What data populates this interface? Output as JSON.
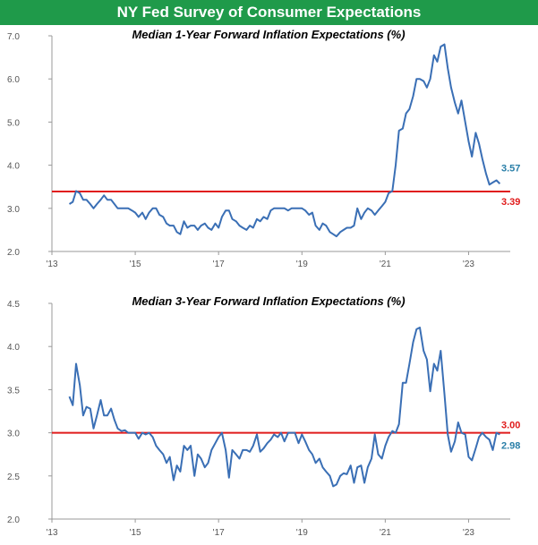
{
  "banner": {
    "title": "NY Fed Survey of Consumer Expectations"
  },
  "colors": {
    "banner": "#1f9a4a",
    "series": "#3a6fb5",
    "reference": "#e01b1b",
    "axis": "#999999"
  },
  "chart_data": [
    {
      "type": "line",
      "title": "Median 1-Year Forward Inflation Expectations (%)",
      "xlabel": "",
      "ylabel": "",
      "xlim": [
        2013.0,
        2024.0
      ],
      "ylim": [
        2.0,
        7.0
      ],
      "yticks": [
        "2.0",
        "3.0",
        "4.0",
        "5.0",
        "6.0",
        "7.0"
      ],
      "xticks": [
        {
          "x": 2013,
          "label": "'13"
        },
        {
          "x": 2015,
          "label": "'15"
        },
        {
          "x": 2017,
          "label": "'17"
        },
        {
          "x": 2019,
          "label": "'19"
        },
        {
          "x": 2021,
          "label": "'21"
        },
        {
          "x": 2023,
          "label": "'23"
        }
      ],
      "reference_line": {
        "y": 3.39,
        "label": "3.39"
      },
      "last_value_label": "3.57",
      "grid": false,
      "series": [
        {
          "x": [
            2013.42,
            2013.5,
            2013.58,
            2013.67,
            2013.75,
            2013.83,
            2013.92,
            2014.0,
            2014.08,
            2014.17,
            2014.25,
            2014.33,
            2014.42,
            2014.5,
            2014.58,
            2014.67,
            2014.75,
            2014.83,
            2014.92,
            2015.0,
            2015.08,
            2015.17,
            2015.25,
            2015.33,
            2015.42,
            2015.5,
            2015.58,
            2015.67,
            2015.75,
            2015.83,
            2015.92,
            2016.0,
            2016.08,
            2016.17,
            2016.25,
            2016.33,
            2016.42,
            2016.5,
            2016.58,
            2016.67,
            2016.75,
            2016.83,
            2016.92,
            2017.0,
            2017.08,
            2017.17,
            2017.25,
            2017.33,
            2017.42,
            2017.5,
            2017.58,
            2017.67,
            2017.75,
            2017.83,
            2017.92,
            2018.0,
            2018.08,
            2018.17,
            2018.25,
            2018.33,
            2018.42,
            2018.5,
            2018.58,
            2018.67,
            2018.75,
            2018.83,
            2018.92,
            2019.0,
            2019.08,
            2019.17,
            2019.25,
            2019.33,
            2019.42,
            2019.5,
            2019.58,
            2019.67,
            2019.75,
            2019.83,
            2019.92,
            2020.0,
            2020.08,
            2020.17,
            2020.25,
            2020.33,
            2020.42,
            2020.5,
            2020.58,
            2020.67,
            2020.75,
            2020.83,
            2020.92,
            2021.0,
            2021.08,
            2021.17,
            2021.25,
            2021.33,
            2021.42,
            2021.5,
            2021.58,
            2021.67,
            2021.75,
            2021.83,
            2021.92,
            2022.0,
            2022.08,
            2022.17,
            2022.25,
            2022.33,
            2022.42,
            2022.5,
            2022.58,
            2022.67,
            2022.75,
            2022.83,
            2022.92,
            2023.0,
            2023.08,
            2023.17,
            2023.25,
            2023.33,
            2023.42,
            2023.5,
            2023.58,
            2023.67,
            2023.75
          ],
          "values": [
            3.1,
            3.15,
            3.4,
            3.35,
            3.2,
            3.2,
            3.1,
            3.0,
            3.1,
            3.2,
            3.3,
            3.2,
            3.2,
            3.1,
            3.0,
            3.0,
            3.0,
            3.0,
            2.95,
            2.9,
            2.8,
            2.9,
            2.75,
            2.9,
            3.0,
            3.0,
            2.85,
            2.8,
            2.65,
            2.6,
            2.6,
            2.45,
            2.4,
            2.7,
            2.55,
            2.6,
            2.6,
            2.5,
            2.6,
            2.65,
            2.55,
            2.5,
            2.65,
            2.55,
            2.8,
            2.95,
            2.95,
            2.75,
            2.7,
            2.6,
            2.55,
            2.5,
            2.6,
            2.55,
            2.75,
            2.7,
            2.8,
            2.75,
            2.95,
            3.0,
            3.0,
            3.0,
            3.0,
            2.95,
            3.0,
            3.0,
            3.0,
            3.0,
            2.95,
            2.85,
            2.9,
            2.6,
            2.5,
            2.65,
            2.6,
            2.45,
            2.4,
            2.35,
            2.45,
            2.5,
            2.55,
            2.55,
            2.6,
            3.0,
            2.75,
            2.9,
            3.0,
            2.95,
            2.85,
            2.95,
            3.05,
            3.15,
            3.35,
            3.4,
            4.0,
            4.8,
            4.85,
            5.2,
            5.3,
            5.6,
            6.0,
            6.0,
            5.95,
            5.8,
            6.0,
            6.55,
            6.4,
            6.75,
            6.8,
            6.25,
            5.8,
            5.45,
            5.2,
            5.5,
            5.0,
            4.55,
            4.2,
            4.75,
            4.5,
            4.15,
            3.8,
            3.55,
            3.6,
            3.65,
            3.57
          ]
        }
      ]
    },
    {
      "type": "line",
      "title": "Median 3-Year Forward Inflation Expectations (%)",
      "xlabel": "",
      "ylabel": "",
      "xlim": [
        2013.0,
        2024.0
      ],
      "ylim": [
        2.0,
        4.5
      ],
      "yticks": [
        "2.0",
        "2.5",
        "3.0",
        "3.5",
        "4.0",
        "4.5"
      ],
      "xticks": [
        {
          "x": 2013,
          "label": "'13"
        },
        {
          "x": 2015,
          "label": "'15"
        },
        {
          "x": 2017,
          "label": "'17"
        },
        {
          "x": 2019,
          "label": "'19"
        },
        {
          "x": 2021,
          "label": "'21"
        },
        {
          "x": 2023,
          "label": "'23"
        }
      ],
      "reference_line": {
        "y": 3.0,
        "label": "3.00"
      },
      "last_value_label": "2.98",
      "grid": false,
      "series": [
        {
          "x": [
            2013.42,
            2013.5,
            2013.58,
            2013.67,
            2013.75,
            2013.83,
            2013.92,
            2014.0,
            2014.08,
            2014.17,
            2014.25,
            2014.33,
            2014.42,
            2014.5,
            2014.58,
            2014.67,
            2014.75,
            2014.83,
            2014.92,
            2015.0,
            2015.08,
            2015.17,
            2015.25,
            2015.33,
            2015.42,
            2015.5,
            2015.58,
            2015.67,
            2015.75,
            2015.83,
            2015.92,
            2016.0,
            2016.08,
            2016.17,
            2016.25,
            2016.33,
            2016.42,
            2016.5,
            2016.58,
            2016.67,
            2016.75,
            2016.83,
            2016.92,
            2017.0,
            2017.08,
            2017.17,
            2017.25,
            2017.33,
            2017.42,
            2017.5,
            2017.58,
            2017.67,
            2017.75,
            2017.83,
            2017.92,
            2018.0,
            2018.08,
            2018.17,
            2018.25,
            2018.33,
            2018.42,
            2018.5,
            2018.58,
            2018.67,
            2018.75,
            2018.83,
            2018.92,
            2019.0,
            2019.08,
            2019.17,
            2019.25,
            2019.33,
            2019.42,
            2019.5,
            2019.58,
            2019.67,
            2019.75,
            2019.83,
            2019.92,
            2020.0,
            2020.08,
            2020.17,
            2020.25,
            2020.33,
            2020.42,
            2020.5,
            2020.58,
            2020.67,
            2020.75,
            2020.83,
            2020.92,
            2021.0,
            2021.08,
            2021.17,
            2021.25,
            2021.33,
            2021.42,
            2021.5,
            2021.58,
            2021.67,
            2021.75,
            2021.83,
            2021.92,
            2022.0,
            2022.08,
            2022.17,
            2022.25,
            2022.33,
            2022.42,
            2022.5,
            2022.58,
            2022.67,
            2022.75,
            2022.83,
            2022.92,
            2023.0,
            2023.08,
            2023.17,
            2023.25,
            2023.33,
            2023.42,
            2023.5,
            2023.58,
            2023.67,
            2023.75
          ],
          "values": [
            3.42,
            3.32,
            3.8,
            3.55,
            3.2,
            3.3,
            3.28,
            3.05,
            3.2,
            3.38,
            3.2,
            3.2,
            3.28,
            3.15,
            3.05,
            3.02,
            3.03,
            3.0,
            3.0,
            3.0,
            2.93,
            3.0,
            2.98,
            3.0,
            2.95,
            2.85,
            2.8,
            2.75,
            2.65,
            2.72,
            2.45,
            2.62,
            2.55,
            2.85,
            2.8,
            2.85,
            2.5,
            2.75,
            2.7,
            2.6,
            2.65,
            2.8,
            2.88,
            2.95,
            3.0,
            2.8,
            2.48,
            2.8,
            2.75,
            2.7,
            2.8,
            2.8,
            2.78,
            2.85,
            2.98,
            2.78,
            2.82,
            2.88,
            2.92,
            2.98,
            2.95,
            3.0,
            2.9,
            3.0,
            3.0,
            3.0,
            2.88,
            2.98,
            2.9,
            2.8,
            2.75,
            2.65,
            2.7,
            2.6,
            2.55,
            2.5,
            2.38,
            2.4,
            2.5,
            2.53,
            2.52,
            2.62,
            2.42,
            2.6,
            2.62,
            2.42,
            2.6,
            2.7,
            2.98,
            2.75,
            2.7,
            2.85,
            2.95,
            3.02,
            3.0,
            3.1,
            3.58,
            3.58,
            3.8,
            4.05,
            4.2,
            4.22,
            3.95,
            3.85,
            3.48,
            3.8,
            3.72,
            3.95,
            3.45,
            2.98,
            2.78,
            2.9,
            3.12,
            3.0,
            2.98,
            2.72,
            2.68,
            2.82,
            2.95,
            3.0,
            2.95,
            2.92,
            2.8,
            3.0,
            2.98
          ]
        }
      ]
    }
  ]
}
